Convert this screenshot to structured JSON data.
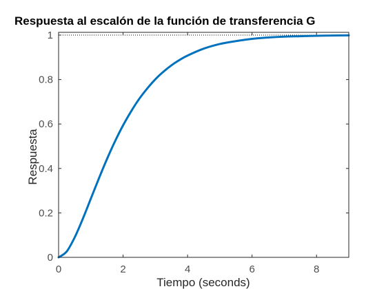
{
  "chart_data": {
    "type": "line",
    "title": "Respuesta al escalón de la función de transferencia G",
    "xlabel": "Tiempo (seconds)",
    "ylabel": "Respuesta",
    "xlim": [
      0,
      9
    ],
    "ylim": [
      0,
      1
    ],
    "xticks": [
      "0",
      "2",
      "4",
      "6",
      "8"
    ],
    "yticks": [
      "0",
      "0.2",
      "0.4",
      "0.6",
      "0.8",
      "1"
    ],
    "grid": false,
    "reference_line": {
      "y": 1,
      "style": "dotted",
      "color": "#000000"
    },
    "series": [
      {
        "color": "#0072bd",
        "x": [
          0,
          0.25,
          0.5,
          0.75,
          1.0,
          1.25,
          1.5,
          1.75,
          2.0,
          2.25,
          2.5,
          2.75,
          3.0,
          3.25,
          3.5,
          3.75,
          4.0,
          4.5,
          5.0,
          5.5,
          6.0,
          6.5,
          7.0,
          7.5,
          8.0,
          8.5,
          9.0
        ],
        "y": [
          0,
          0.026,
          0.09,
          0.173,
          0.264,
          0.355,
          0.442,
          0.522,
          0.594,
          0.657,
          0.713,
          0.76,
          0.801,
          0.835,
          0.864,
          0.888,
          0.908,
          0.939,
          0.96,
          0.973,
          0.983,
          0.989,
          0.993,
          0.995,
          0.997,
          0.998,
          0.999
        ]
      }
    ]
  }
}
